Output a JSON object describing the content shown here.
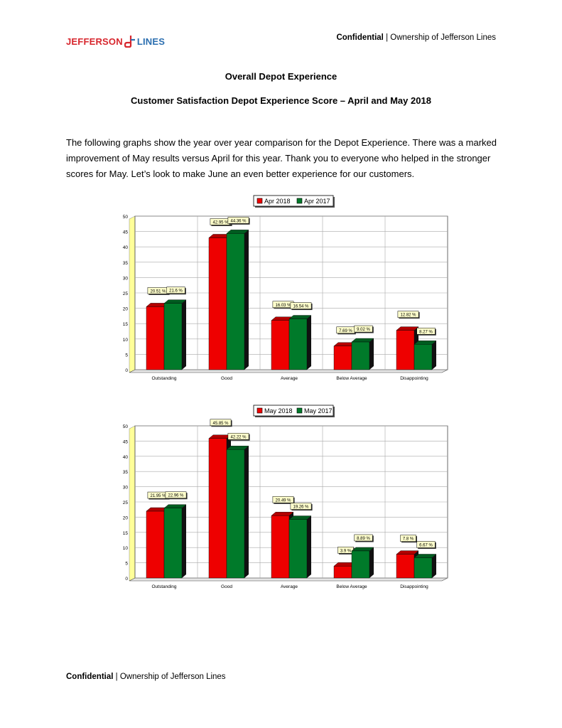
{
  "header": {
    "logo_left": "JEFFERSON",
    "logo_right": "LINES",
    "confidential_bold": "Confidential",
    "confidential_rest": " | Ownership of Jefferson Lines"
  },
  "title": "Overall Depot Experience",
  "subtitle": "Customer Satisfaction Depot Experience Score – April and May 2018",
  "paragraph": "The following graphs show the year over year comparison for the Depot Experience.  There was a marked improvement of May results versus April for this year.  Thank you to everyone who helped in the stronger scores for May.  Let’s look to make June an even better experience for our customers.",
  "footer": {
    "confidential_bold": "Confidential",
    "confidential_rest": " | Ownership of Jefferson Lines"
  },
  "colors": {
    "series1": "#ee0000",
    "series2": "#007a2a",
    "label_bg": "#ffffcc",
    "axis_band": "#ffff99"
  },
  "chart_data": [
    {
      "type": "bar",
      "categories": [
        "Outstanding",
        "Good",
        "Average",
        "Below Average",
        "Disappointing"
      ],
      "series": [
        {
          "name": "Apr 2018",
          "values": [
            20.51,
            42.95,
            16.03,
            7.69,
            12.82
          ],
          "labels": [
            "20.51 %",
            "42.95 %",
            "16.03 %",
            "7.69 %",
            "12.82 %"
          ]
        },
        {
          "name": "Apr 2017",
          "values": [
            21.6,
            44.36,
            16.54,
            9.02,
            8.27
          ],
          "labels": [
            "21.6 %",
            "44.36 %",
            "16.54 %",
            "9.02 %",
            "8.27 %"
          ]
        }
      ],
      "yticks": [
        0,
        5,
        10,
        15,
        20,
        25,
        30,
        35,
        40,
        45,
        50
      ],
      "ylim": [
        0,
        50
      ],
      "legend": "top-center",
      "grid": true
    },
    {
      "type": "bar",
      "categories": [
        "Outstanding",
        "Good",
        "Average",
        "Below Average",
        "Disappointing"
      ],
      "series": [
        {
          "name": "May 2018",
          "values": [
            21.95,
            45.85,
            20.49,
            3.9,
            7.8
          ],
          "labels": [
            "21.95 %",
            "45.85 %",
            "20.49 %",
            "3.9 %",
            "7.8 %"
          ]
        },
        {
          "name": "May 2017",
          "values": [
            22.96,
            42.22,
            19.26,
            8.89,
            6.67
          ],
          "labels": [
            "22.96 %",
            "42.22 %",
            "19.26 %",
            "8.89 %",
            "6.67 %"
          ]
        }
      ],
      "yticks": [
        0,
        5,
        10,
        15,
        20,
        25,
        30,
        35,
        40,
        45,
        50
      ],
      "ylim": [
        0,
        50
      ],
      "legend": "top-center",
      "grid": true
    }
  ]
}
